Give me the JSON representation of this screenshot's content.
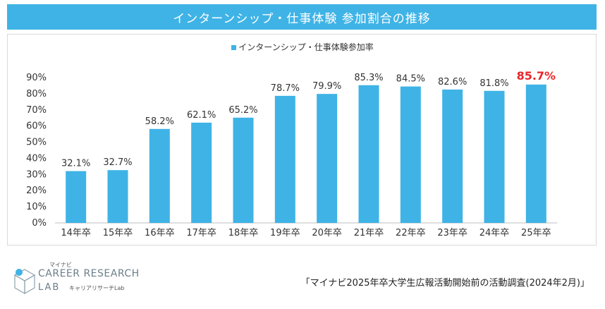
{
  "header": {
    "title": "インターンシップ・仕事体験 参加割合の推移"
  },
  "chart_data": {
    "type": "bar",
    "title": "インターンシップ・仕事体験 参加割合の推移",
    "legend": [
      "インターンシップ・仕事体験参加率"
    ],
    "legend_position": "top",
    "categories": [
      "14年卒",
      "15年卒",
      "16年卒",
      "17年卒",
      "18年卒",
      "19年卒",
      "20年卒",
      "21年卒",
      "22年卒",
      "23年卒",
      "24年卒",
      "25年卒"
    ],
    "series": [
      {
        "name": "インターンシップ・仕事体験参加率",
        "values": [
          32.1,
          32.7,
          58.2,
          62.1,
          65.2,
          78.7,
          79.9,
          85.3,
          84.5,
          82.6,
          81.8,
          85.7
        ],
        "labels": [
          "32.1%",
          "32.7%",
          "58.2%",
          "62.1%",
          "65.2%",
          "78.7%",
          "79.9%",
          "85.3%",
          "84.5%",
          "82.6%",
          "81.8%",
          "85.7%"
        ]
      }
    ],
    "highlight_index": 11,
    "yticks": [
      "0%",
      "10%",
      "20%",
      "30%",
      "40%",
      "50%",
      "60%",
      "70%",
      "80%",
      "90%"
    ],
    "ylim": [
      0,
      90
    ],
    "xlabel": "",
    "ylabel": "",
    "colors": {
      "bar": "#3fb3e6",
      "highlight_label": "#e8262a",
      "axis": "#bfbfbf"
    }
  },
  "logo": {
    "brand_small": "マイナビ",
    "name": "CAREER RESEARCH",
    "lab": "LAB",
    "sub": "キャリアリサーチLab"
  },
  "source": {
    "text": "「マイナビ2025年卒大学生広報活動開始前の活動調査(2024年2月)」"
  }
}
